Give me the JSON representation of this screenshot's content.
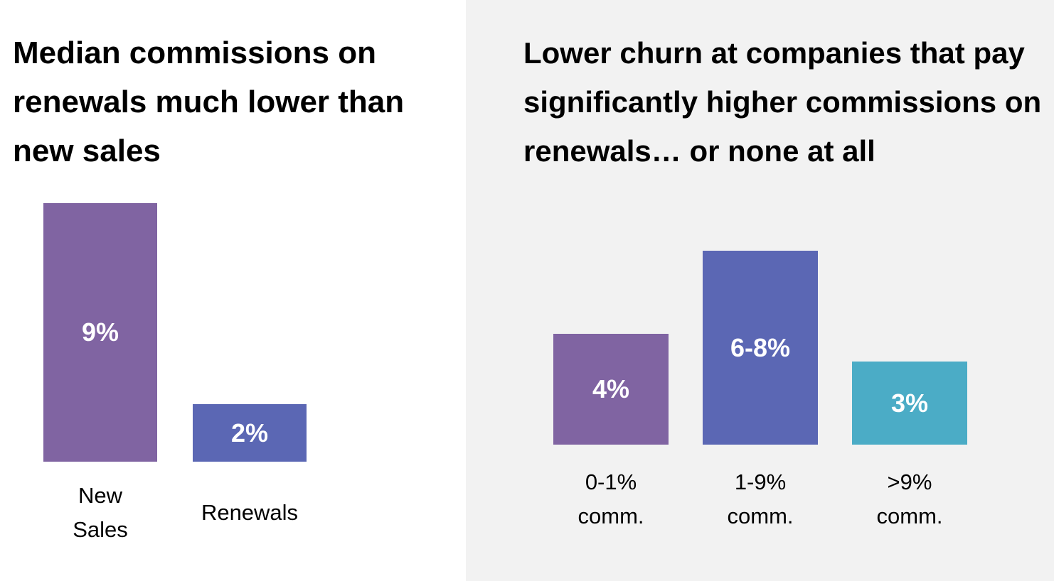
{
  "chart_data": [
    {
      "type": "bar",
      "title": "Median commissions on renewals much lower than new sales",
      "categories": [
        "New Sales",
        "Renewals"
      ],
      "values": [
        9,
        2
      ],
      "value_labels": [
        "9%",
        "2%"
      ],
      "colors": [
        "#8064a2",
        "#5b67b4"
      ]
    },
    {
      "type": "bar",
      "title": "Lower churn at companies that pay significantly higher commissions on renewals… or none at all",
      "categories": [
        "0-1% comm.",
        "1-9% comm.",
        ">9% comm."
      ],
      "values": [
        4,
        7,
        3
      ],
      "value_labels": [
        "4%",
        "6-8%",
        "3%"
      ],
      "colors": [
        "#8064a2",
        "#5b67b4",
        "#4bacc6"
      ]
    }
  ]
}
